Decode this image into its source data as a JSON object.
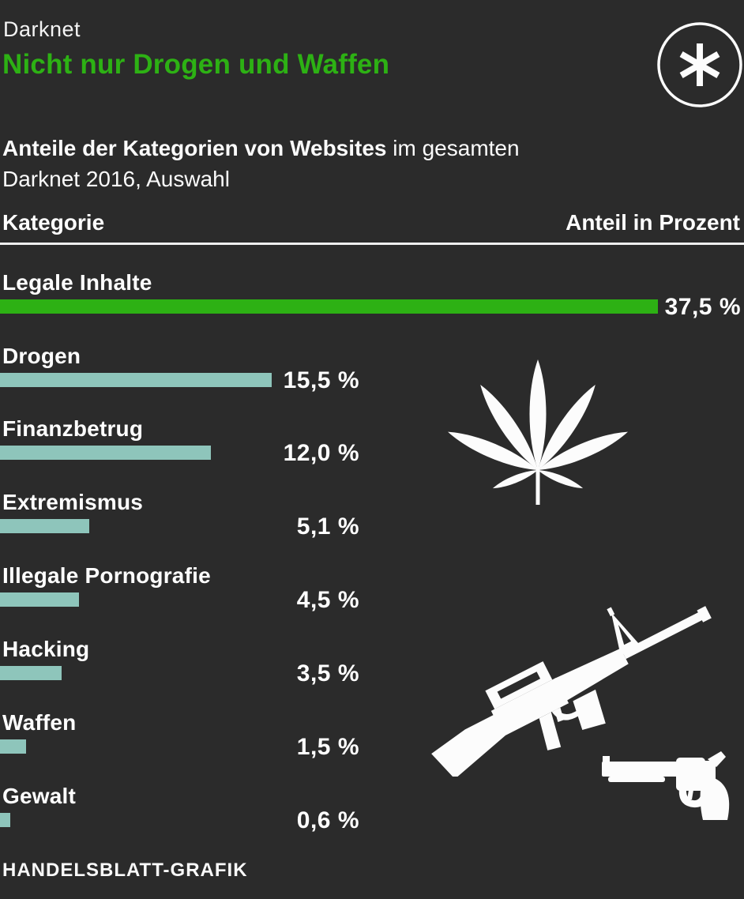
{
  "header": {
    "kicker": "Darknet",
    "title": "Nicht nur Drogen und Waffen"
  },
  "subtitle": {
    "bold": "Anteile der Kategorien von Websites",
    "regular": " im gesamten",
    "line2": "Darknet 2016, Auswahl"
  },
  "table_header": {
    "left": "Kategorie",
    "right": "Anteil in Prozent"
  },
  "chart_data": {
    "type": "bar",
    "orientation": "horizontal",
    "title": "Nicht nur Drogen und Waffen",
    "subtitle": "Anteile der Kategorien von Websites im gesamten Darknet 2016, Auswahl",
    "categories": [
      "Legale Inhalte",
      "Drogen",
      "Finanzbetrug",
      "Extremismus",
      "Illegale Pornografie",
      "Hacking",
      "Waffen",
      "Gewalt"
    ],
    "values": [
      37.5,
      15.5,
      12.0,
      5.1,
      4.5,
      3.5,
      1.5,
      0.6
    ],
    "value_labels": [
      "37,5 %",
      "15,5 %",
      "12,0 %",
      "5,1 %",
      "4,5 %",
      "3,5 %",
      "1,5 %",
      "0,6 %"
    ],
    "unit": "percent",
    "xlim": [
      0,
      37.5
    ],
    "grid": false,
    "legend": false,
    "highlight_index": 0,
    "colors": {
      "highlight": "#2db114",
      "default": "#8ec5bb"
    }
  },
  "icons": {
    "logo": "asterisk-in-circle",
    "drugs": "cannabis-leaf",
    "weapon_rifle": "assault-rifle",
    "weapon_handgun": "revolver"
  },
  "footer": {
    "credit": "HANDELSBLATT-GRAFIK"
  },
  "colors": {
    "background": "#2b2b2b",
    "accent_green": "#2db114",
    "bar_teal": "#8ec5bb",
    "text": "#ffffff",
    "divider": "#efefef"
  }
}
